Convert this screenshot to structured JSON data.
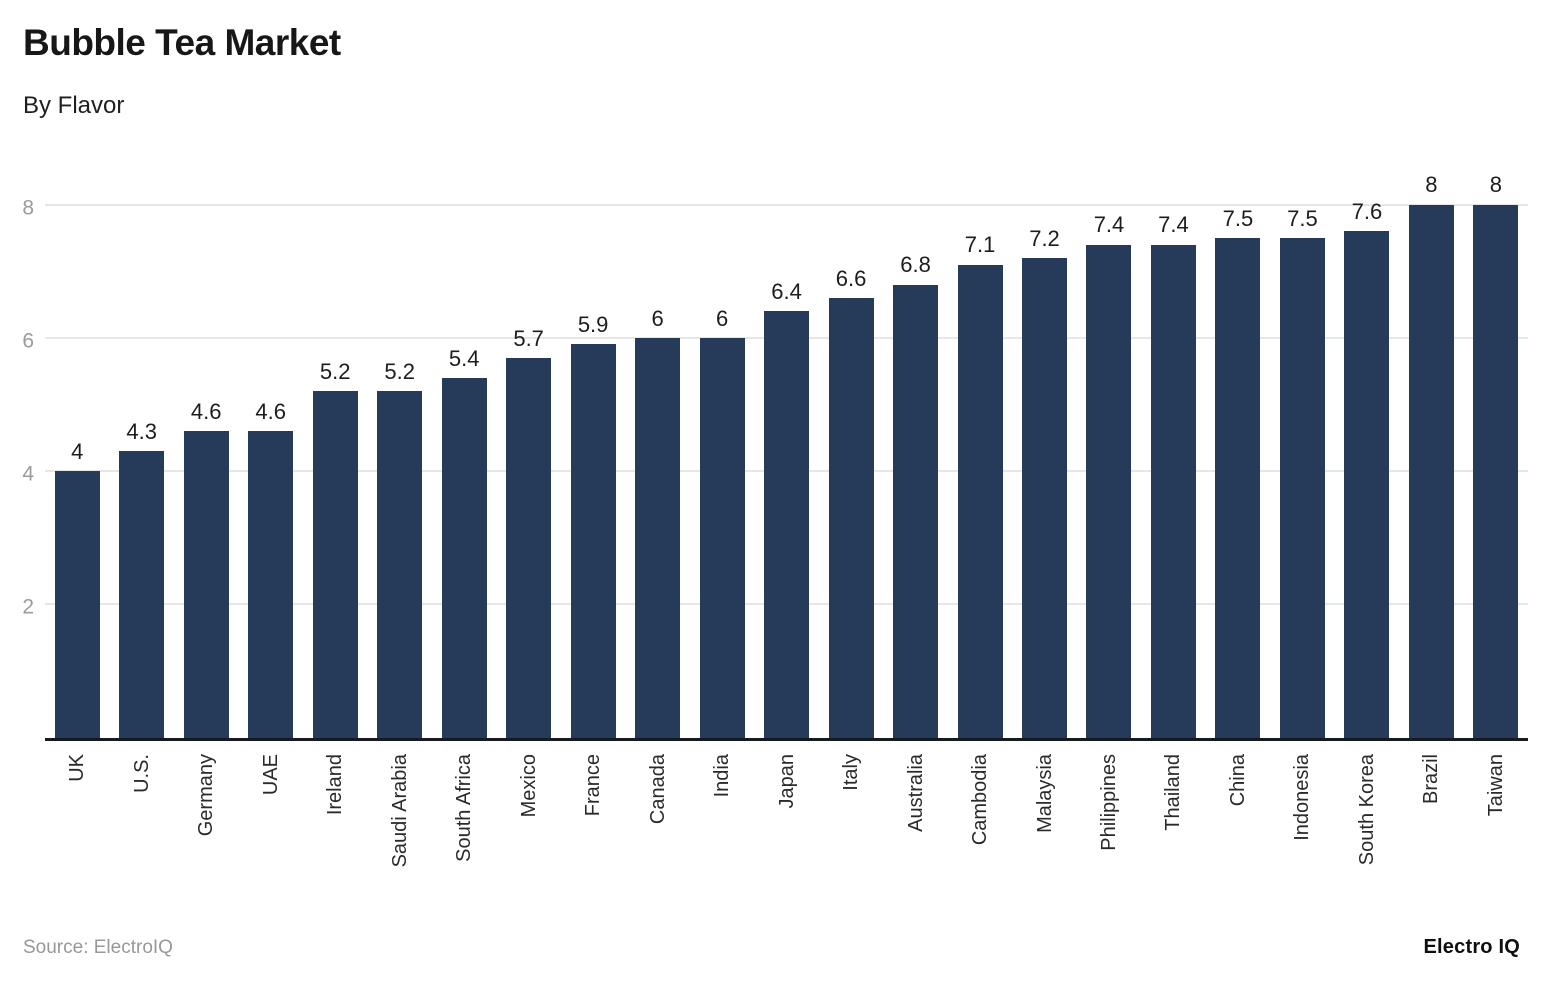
{
  "header": {
    "title": "Bubble Tea Market",
    "subtitle": "By Flavor"
  },
  "footer": {
    "source": "Source: ElectroIQ",
    "brand": "Electro IQ"
  },
  "colors": {
    "bar": "#263a59",
    "gridline": "#e6e6e6",
    "axis_line": "#161b22",
    "ytick_label": "#9b9b9b",
    "value_label": "#1d1d1d",
    "category_label": "#2a2a2a"
  },
  "chart_data": {
    "type": "bar",
    "title": "Bubble Tea Market",
    "subtitle": "By Flavor",
    "categories": [
      "UK",
      "U.S.",
      "Germany",
      "UAE",
      "Ireland",
      "Saudi Arabia",
      "South Africa",
      "Mexico",
      "France",
      "Canada",
      "India",
      "Japan",
      "Italy",
      "Australia",
      "Cambodia",
      "Malaysia",
      "Philippines",
      "Thailand",
      "China",
      "Indonesia",
      "South Korea",
      "Brazil",
      "Taiwan"
    ],
    "values": [
      4,
      4.3,
      4.6,
      4.6,
      5.2,
      5.2,
      5.4,
      5.7,
      5.9,
      6,
      6,
      6.4,
      6.6,
      6.8,
      7.1,
      7.2,
      7.4,
      7.4,
      7.5,
      7.5,
      7.6,
      8,
      8
    ],
    "xlabel": "",
    "ylabel": "",
    "ylim": [
      0,
      8
    ],
    "yticks": [
      2,
      4,
      6,
      8
    ],
    "grid": "horizontal-at-even-ticks",
    "legend": "none",
    "value_labels": "above-bars",
    "category_label_rotation": "vertical-bottom-to-top"
  }
}
